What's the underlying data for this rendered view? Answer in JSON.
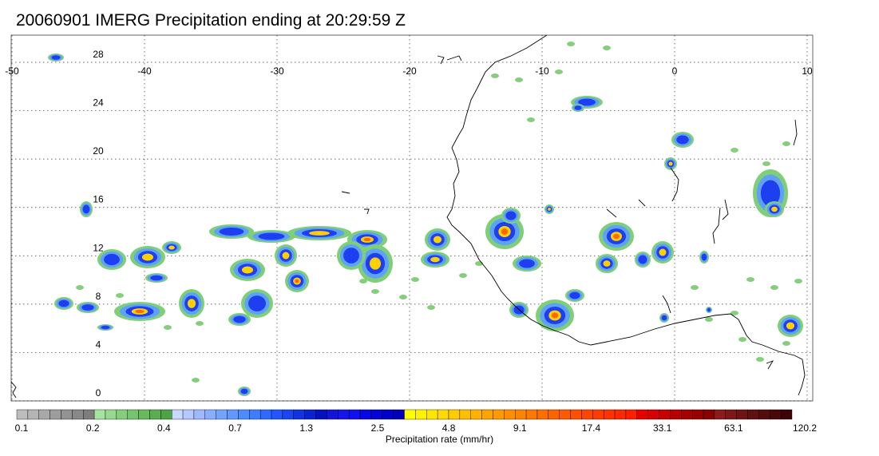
{
  "title": "20060901 IMERG Precipitation ending at 20:29:59 Z",
  "map": {
    "lon_range": [
      -50,
      10
    ],
    "lat_range": [
      -1.5,
      30.5
    ],
    "lon_ticks": [
      -50,
      -40,
      -30,
      -20,
      -10,
      0,
      10
    ],
    "lat_ticks": [
      0,
      4,
      8,
      12,
      16,
      20,
      24,
      28
    ],
    "grid": true,
    "gridline_style": "dotted"
  },
  "colorbar": {
    "title": "Precipitation rate (mm/hr)",
    "tick_labels": [
      "0.1",
      "0.2",
      "0.4",
      "0.7",
      "1.3",
      "2.5",
      "4.8",
      "9.1",
      "17.4",
      "33.1",
      "63.1",
      "120.2"
    ],
    "colors": [
      "#bdbdbd",
      "#b4b4b4",
      "#a8a8a8",
      "#9d9d9d",
      "#929292",
      "#888888",
      "#7d7d7d",
      "#a6e3a0",
      "#96d98f",
      "#86ce7e",
      "#76c46e",
      "#66b95d",
      "#59ae51",
      "#4da345",
      "#c8d8ff",
      "#b3c9ff",
      "#9ebaff",
      "#89aeff",
      "#74a3ff",
      "#6098ff",
      "#4d8cff",
      "#3f7cff",
      "#3069ff",
      "#2356ff",
      "#1a45f0",
      "#1333e0",
      "#0b22d0",
      "#0511c0",
      "#1414d8",
      "#1616e8",
      "#1010f0",
      "#0808e6",
      "#0404d8",
      "#0000c8",
      "#0000b8",
      "#ffff00",
      "#fff200",
      "#ffe600",
      "#ffd900",
      "#ffcc00",
      "#ffbf00",
      "#ffb300",
      "#ffa500",
      "#ff9a00",
      "#ff8f00",
      "#ff8400",
      "#ff7900",
      "#ff6e00",
      "#ff6300",
      "#ff5a00",
      "#ff5000",
      "#ff4600",
      "#ff3c00",
      "#ff3200",
      "#ff2800",
      "#ff1e00",
      "#e80000",
      "#d80000",
      "#c80000",
      "#b80000",
      "#a80000",
      "#980000",
      "#880000",
      "#8a1c1c",
      "#7c1818",
      "#6e1414",
      "#601010",
      "#540c0c",
      "#480808",
      "#3c0404"
    ]
  },
  "colors": {
    "coastline": "#000000",
    "gridline": "#333333",
    "frame": "#000000"
  }
}
